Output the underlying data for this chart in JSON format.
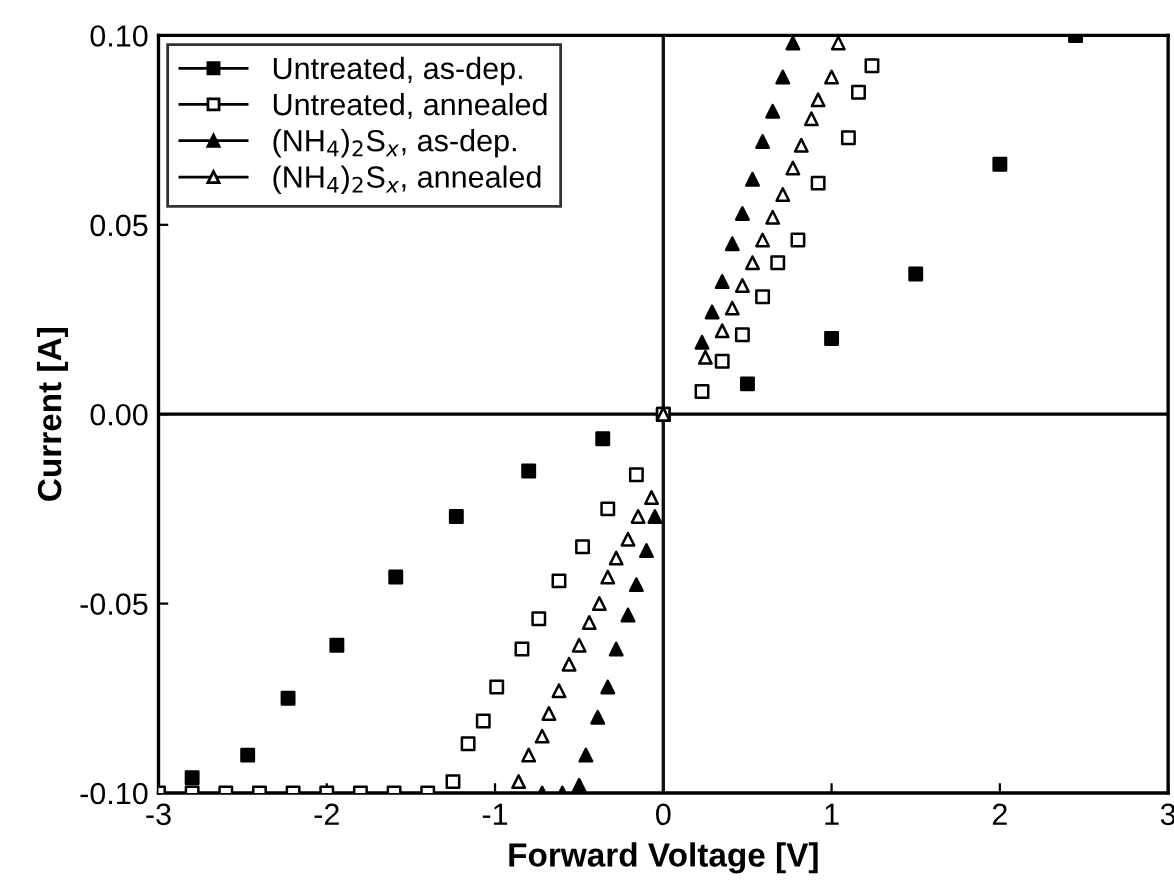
{
  "chart_data": {
    "type": "scatter",
    "xlabel": "Forward Voltage [V]",
    "ylabel": "Current [A]",
    "xlim": [
      -3,
      3
    ],
    "ylim": [
      -0.1,
      0.1
    ],
    "xticks": [
      -3,
      -2,
      -1,
      0,
      1,
      2,
      3
    ],
    "yticks": [
      {
        "value": -0.1,
        "label": "-0.10"
      },
      {
        "value": -0.05,
        "label": "-0.05"
      },
      {
        "value": 0,
        "label": "0.00"
      },
      {
        "value": 0.05,
        "label": "0.05"
      },
      {
        "value": 0.1,
        "label": "0.10"
      }
    ],
    "grid": false,
    "legend": "top left",
    "line_style": "solid",
    "ref_lines": [
      {
        "axis": "x",
        "value": 0,
        "color": "#101010"
      },
      {
        "axis": "y",
        "value": 0,
        "color": "#000000"
      }
    ],
    "series": [
      {
        "name": "Untreated, as-dep.",
        "color": "#000000",
        "marker": "square",
        "x": [
          -2.8,
          -2.47,
          -2.23,
          -1.94,
          -1.59,
          -1.23,
          -0.8,
          -0.36,
          0,
          0.5,
          1,
          1.5,
          2,
          2.45
        ],
        "values": [
          -0.096,
          -0.09,
          -0.075,
          -0.061,
          -0.043,
          -0.027,
          -0.015,
          -0.0065,
          0,
          0.008,
          0.02,
          0.037,
          0.066,
          0.1
        ]
      },
      {
        "name": "Untreated, annealed",
        "color": "#ffffff",
        "marker": "square",
        "x": [
          -3,
          -2.8,
          -2.6,
          -2.4,
          -2.2,
          -2.0,
          -1.8,
          -1.6,
          -1.4,
          -1.25,
          -1.16,
          -1.07,
          -0.99,
          -0.84,
          -0.74,
          -0.62,
          -0.48,
          -0.33,
          -0.16,
          0,
          0.23,
          0.35,
          0.47,
          0.59,
          0.68,
          0.8,
          0.92,
          1.1,
          1.16,
          1.24
        ],
        "values": [
          -0.1,
          -0.1,
          -0.1,
          -0.1,
          -0.1,
          -0.1,
          -0.1,
          -0.1,
          -0.1,
          -0.097,
          -0.087,
          -0.081,
          -0.072,
          -0.062,
          -0.054,
          -0.044,
          -0.035,
          -0.025,
          -0.016,
          0,
          0.006,
          0.014,
          0.021,
          0.031,
          0.04,
          0.046,
          0.061,
          0.073,
          0.085,
          0.092
        ]
      },
      {
        "name": "(NH$_{4}$)$_{2}$S$_{x}$, as-dep.",
        "color": "#000000",
        "marker": "triangle",
        "x": [
          -0.72,
          -0.6,
          -0.5,
          -0.46,
          -0.39,
          -0.33,
          -0.28,
          -0.21,
          -0.16,
          -0.1,
          -0.05,
          0,
          0.23,
          0.29,
          0.35,
          0.41,
          0.47,
          0.53,
          0.59,
          0.65,
          0.71,
          0.77
        ],
        "values": [
          -0.1,
          -0.1,
          -0.098,
          -0.09,
          -0.08,
          -0.072,
          -0.062,
          -0.053,
          -0.045,
          -0.036,
          -0.027,
          0,
          0.019,
          0.027,
          0.035,
          0.045,
          0.053,
          0.062,
          0.072,
          0.08,
          0.089,
          0.098
        ]
      },
      {
        "name": "(NH$_{4}$)$_{2}$S$_{x}$, annealed",
        "color": "#ffffff",
        "marker": "triangle",
        "x": [
          -0.86,
          -0.8,
          -0.72,
          -0.68,
          -0.62,
          -0.56,
          -0.5,
          -0.44,
          -0.38,
          -0.33,
          -0.28,
          -0.21,
          -0.15,
          -0.07,
          0,
          0.25,
          0.35,
          0.41,
          0.47,
          0.53,
          0.59,
          0.65,
          0.71,
          0.77,
          0.82,
          0.88,
          0.92,
          1.0,
          1.04
        ],
        "values": [
          -0.097,
          -0.09,
          -0.085,
          -0.079,
          -0.073,
          -0.066,
          -0.061,
          -0.055,
          -0.05,
          -0.043,
          -0.038,
          -0.033,
          -0.027,
          -0.022,
          0,
          0.015,
          0.022,
          0.028,
          0.034,
          0.04,
          0.046,
          0.052,
          0.058,
          0.065,
          0.071,
          0.078,
          0.083,
          0.089,
          0.098
        ]
      }
    ]
  }
}
